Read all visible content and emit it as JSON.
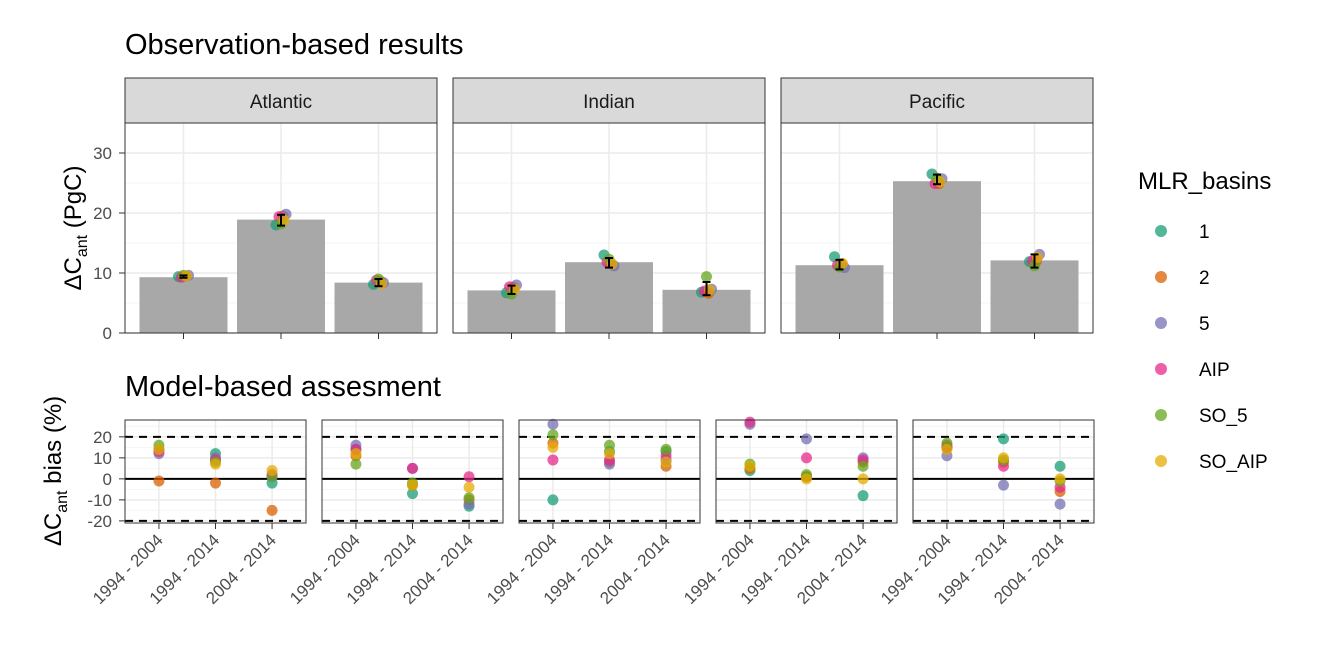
{
  "colors": {
    "1": "#1b9e77",
    "2": "#d95f02",
    "5": "#7570b3",
    "AIP": "#e7298a",
    "SO_5": "#66a61e",
    "SO_AIP": "#e6ab02",
    "bar": "#a8a8a8",
    "strip": "#d9d9d9",
    "grid": "#ebebeb"
  },
  "chart_data": [
    {
      "type": "bar",
      "title": "Observation-based results",
      "ylabel_main": "ΔC",
      "ylabel_sub": "ant",
      "ylabel_tail": " (PgC)",
      "yticks": [
        0,
        10,
        20,
        30
      ],
      "ylim": [
        0,
        35
      ],
      "panels": [
        {
          "name": "Atlantic",
          "bars": [
            9.3,
            18.9,
            8.4
          ],
          "mean": [
            9.4,
            18.8,
            8.4
          ],
          "err": [
            0.2,
            0.9,
            0.6
          ],
          "points": [
            [
              {
                "g": "1",
                "v": 9.4
              },
              {
                "g": "2",
                "v": 9.5
              },
              {
                "g": "5",
                "v": 9.6
              },
              {
                "g": "AIP",
                "v": 9.3
              },
              {
                "g": "SO_5",
                "v": 9.6
              },
              {
                "g": "SO_AIP",
                "v": 9.5
              }
            ],
            [
              {
                "g": "1",
                "v": 18.0
              },
              {
                "g": "2",
                "v": 19.5
              },
              {
                "g": "5",
                "v": 19.8
              },
              {
                "g": "AIP",
                "v": 19.4
              },
              {
                "g": "SO_5",
                "v": 18.2
              },
              {
                "g": "SO_AIP",
                "v": 18.8
              }
            ],
            [
              {
                "g": "1",
                "v": 8.1
              },
              {
                "g": "2",
                "v": 8.6
              },
              {
                "g": "5",
                "v": 8.4
              },
              {
                "g": "AIP",
                "v": 8.8
              },
              {
                "g": "SO_5",
                "v": 9.0
              },
              {
                "g": "SO_AIP",
                "v": 8.2
              }
            ]
          ]
        },
        {
          "name": "Indian",
          "bars": [
            7.1,
            11.8,
            7.2
          ],
          "mean": [
            7.2,
            11.7,
            7.4
          ],
          "err": [
            0.7,
            0.8,
            1.1
          ],
          "points": [
            [
              {
                "g": "1",
                "v": 6.7
              },
              {
                "g": "2",
                "v": 7.6
              },
              {
                "g": "5",
                "v": 8.0
              },
              {
                "g": "AIP",
                "v": 7.7
              },
              {
                "g": "SO_5",
                "v": 6.5
              },
              {
                "g": "SO_AIP",
                "v": 7.3
              }
            ],
            [
              {
                "g": "1",
                "v": 13.0
              },
              {
                "g": "2",
                "v": 11.6
              },
              {
                "g": "5",
                "v": 11.2
              },
              {
                "g": "AIP",
                "v": 11.8
              },
              {
                "g": "SO_5",
                "v": 12.3
              },
              {
                "g": "SO_AIP",
                "v": 11.5
              }
            ],
            [
              {
                "g": "1",
                "v": 6.8
              },
              {
                "g": "2",
                "v": 6.6
              },
              {
                "g": "5",
                "v": 7.3
              },
              {
                "g": "AIP",
                "v": 7.0
              },
              {
                "g": "SO_5",
                "v": 9.4
              },
              {
                "g": "SO_AIP",
                "v": 7.2
              }
            ]
          ]
        },
        {
          "name": "Pacific",
          "bars": [
            11.3,
            25.3,
            12.1
          ],
          "mean": [
            11.4,
            25.6,
            12.0
          ],
          "err": [
            0.8,
            0.8,
            1.1
          ],
          "points": [
            [
              {
                "g": "1",
                "v": 12.7
              },
              {
                "g": "2",
                "v": 11.5
              },
              {
                "g": "5",
                "v": 10.9
              },
              {
                "g": "AIP",
                "v": 11.3
              },
              {
                "g": "SO_5",
                "v": 11.0
              },
              {
                "g": "SO_AIP",
                "v": 11.6
              }
            ],
            [
              {
                "g": "1",
                "v": 26.5
              },
              {
                "g": "2",
                "v": 24.9
              },
              {
                "g": "5",
                "v": 25.7
              },
              {
                "g": "AIP",
                "v": 24.9
              },
              {
                "g": "SO_5",
                "v": 25.8
              },
              {
                "g": "SO_AIP",
                "v": 25.2
              }
            ],
            [
              {
                "g": "1",
                "v": 11.9
              },
              {
                "g": "2",
                "v": 12.0
              },
              {
                "g": "5",
                "v": 13.1
              },
              {
                "g": "AIP",
                "v": 12.0
              },
              {
                "g": "SO_5",
                "v": 11.2
              },
              {
                "g": "SO_AIP",
                "v": 12.6
              }
            ]
          ]
        }
      ]
    },
    {
      "type": "scatter",
      "title": "Model-based assesment",
      "ylabel_main": "ΔC",
      "ylabel_sub": "ant",
      "ylabel_tail": " bias (%)",
      "yticks": [
        -20,
        -10,
        0,
        10,
        20
      ],
      "ylim": [
        -21,
        28
      ],
      "reference_lines": [
        20,
        0,
        -20
      ],
      "categories": [
        "1994 - 2004",
        "1994 - 2014",
        "2004 - 2014"
      ],
      "panels": [
        [
          [
            {
              "g": "1",
              "v": 14
            },
            {
              "g": "2",
              "v": -1
            },
            {
              "g": "5",
              "v": 12
            },
            {
              "g": "AIP",
              "v": 13
            },
            {
              "g": "SO_5",
              "v": 16
            },
            {
              "g": "SO_AIP",
              "v": 14
            }
          ],
          [
            {
              "g": "1",
              "v": 12
            },
            {
              "g": "2",
              "v": -2
            },
            {
              "g": "5",
              "v": 10
            },
            {
              "g": "AIP",
              "v": 9
            },
            {
              "g": "SO_5",
              "v": 8
            },
            {
              "g": "SO_AIP",
              "v": 7
            }
          ],
          [
            {
              "g": "1",
              "v": -2
            },
            {
              "g": "2",
              "v": -15
            },
            {
              "g": "5",
              "v": 1
            },
            {
              "g": "AIP",
              "v": 2
            },
            {
              "g": "SO_5",
              "v": 1
            },
            {
              "g": "SO_AIP",
              "v": 4
            }
          ]
        ],
        [
          [
            {
              "g": "1",
              "v": 14
            },
            {
              "g": "2",
              "v": 11
            },
            {
              "g": "5",
              "v": 16
            },
            {
              "g": "AIP",
              "v": 14
            },
            {
              "g": "SO_5",
              "v": 7
            },
            {
              "g": "SO_AIP",
              "v": 12
            }
          ],
          [
            {
              "g": "1",
              "v": -7
            },
            {
              "g": "2",
              "v": -3
            },
            {
              "g": "5",
              "v": 5
            },
            {
              "g": "AIP",
              "v": 5
            },
            {
              "g": "SO_5",
              "v": -2
            },
            {
              "g": "SO_AIP",
              "v": -3
            }
          ],
          [
            {
              "g": "1",
              "v": -13
            },
            {
              "g": "2",
              "v": -10
            },
            {
              "g": "5",
              "v": -12
            },
            {
              "g": "AIP",
              "v": 1
            },
            {
              "g": "SO_5",
              "v": -9
            },
            {
              "g": "SO_AIP",
              "v": -4
            }
          ]
        ],
        [
          [
            {
              "g": "1",
              "v": -10
            },
            {
              "g": "2",
              "v": 17
            },
            {
              "g": "5",
              "v": 26
            },
            {
              "g": "AIP",
              "v": 9
            },
            {
              "g": "SO_5",
              "v": 21
            },
            {
              "g": "SO_AIP",
              "v": 15
            }
          ],
          [
            {
              "g": "1",
              "v": 13
            },
            {
              "g": "2",
              "v": 8
            },
            {
              "g": "5",
              "v": 7
            },
            {
              "g": "AIP",
              "v": 9
            },
            {
              "g": "SO_5",
              "v": 16
            },
            {
              "g": "SO_AIP",
              "v": 12
            }
          ],
          [
            {
              "g": "1",
              "v": 13
            },
            {
              "g": "2",
              "v": 6
            },
            {
              "g": "5",
              "v": 9
            },
            {
              "g": "AIP",
              "v": 11
            },
            {
              "g": "SO_5",
              "v": 14
            },
            {
              "g": "SO_AIP",
              "v": 8
            }
          ]
        ],
        [
          [
            {
              "g": "1",
              "v": 4
            },
            {
              "g": "2",
              "v": 5
            },
            {
              "g": "5",
              "v": 26
            },
            {
              "g": "AIP",
              "v": 27
            },
            {
              "g": "SO_5",
              "v": 7
            },
            {
              "g": "SO_AIP",
              "v": 6
            }
          ],
          [
            {
              "g": "1",
              "v": 1
            },
            {
              "g": "2",
              "v": 1
            },
            {
              "g": "5",
              "v": 19
            },
            {
              "g": "AIP",
              "v": 10
            },
            {
              "g": "SO_5",
              "v": 2
            },
            {
              "g": "SO_AIP",
              "v": 0
            }
          ],
          [
            {
              "g": "1",
              "v": -8
            },
            {
              "g": "2",
              "v": 8
            },
            {
              "g": "5",
              "v": 10
            },
            {
              "g": "AIP",
              "v": 9
            },
            {
              "g": "SO_5",
              "v": 6
            },
            {
              "g": "SO_AIP",
              "v": 0
            }
          ]
        ],
        [
          [
            {
              "g": "1",
              "v": 15
            },
            {
              "g": "2",
              "v": 15
            },
            {
              "g": "5",
              "v": 11
            },
            {
              "g": "AIP",
              "v": 16
            },
            {
              "g": "SO_5",
              "v": 17
            },
            {
              "g": "SO_AIP",
              "v": 14
            }
          ],
          [
            {
              "g": "1",
              "v": 19
            },
            {
              "g": "2",
              "v": 8
            },
            {
              "g": "5",
              "v": -3
            },
            {
              "g": "AIP",
              "v": 6
            },
            {
              "g": "SO_5",
              "v": 9
            },
            {
              "g": "SO_AIP",
              "v": 10
            }
          ],
          [
            {
              "g": "1",
              "v": 6
            },
            {
              "g": "2",
              "v": -6
            },
            {
              "g": "5",
              "v": -12
            },
            {
              "g": "AIP",
              "v": -4
            },
            {
              "g": "SO_5",
              "v": -1
            },
            {
              "g": "SO_AIP",
              "v": 0
            }
          ]
        ]
      ]
    }
  ],
  "legend": {
    "title": "MLR_basins",
    "position": "right",
    "items": [
      "1",
      "2",
      "5",
      "AIP",
      "SO_5",
      "SO_AIP"
    ]
  }
}
